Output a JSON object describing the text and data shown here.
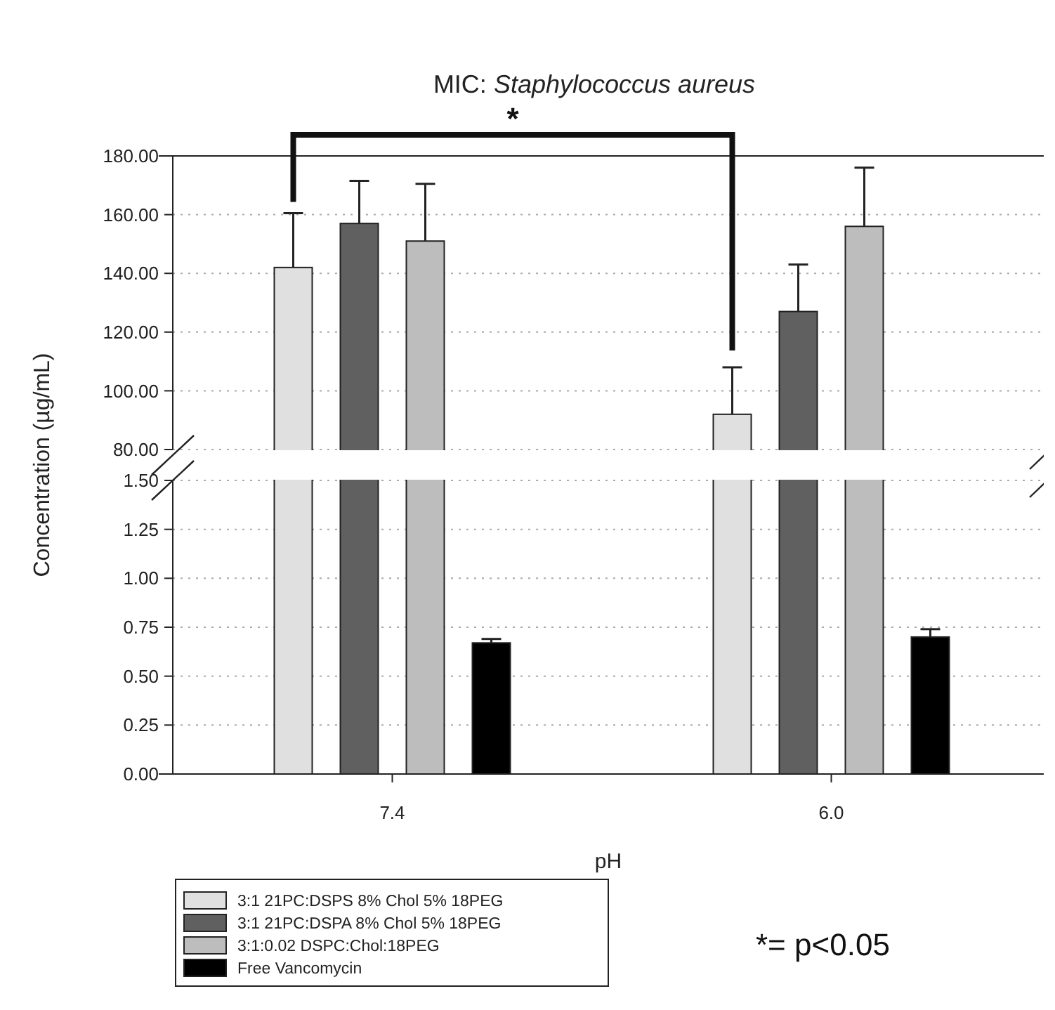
{
  "chart_data": [
    {
      "type": "bar",
      "title": "MIC: Staphylococcus aureus",
      "series": [
        {
          "color": "#e0e0e0",
          "values": [
            142,
            92
          ],
          "errors": [
            [
              142,
              160.5
            ],
            [
              92,
              108
            ]
          ]
        },
        {
          "color": "#606060",
          "values": [
            157,
            127
          ],
          "errors": [
            [
              157,
              171.5
            ],
            [
              127,
              143
            ]
          ]
        },
        {
          "color": "#bdbdbd",
          "values": [
            151,
            156
          ],
          "errors": [
            [
              151,
              170.5
            ],
            [
              156,
              176
            ]
          ]
        }
      ],
      "ylim": [
        80,
        180
      ],
      "yticks": [
        {
          "value": 80,
          "label": "80.00"
        },
        {
          "value": 100,
          "label": "100.00"
        },
        {
          "value": 120,
          "label": "120.00"
        },
        {
          "value": 140,
          "label": "140.00"
        },
        {
          "value": 160,
          "label": "160.00"
        },
        {
          "value": 180,
          "label": "180.00"
        }
      ],
      "grid": "y",
      "tick_labels": "y",
      "annotations": [
        "*"
      ]
    },
    {
      "type": "bar",
      "xlabel": "pH",
      "ylabel": "Concentration (µg/mL)",
      "categories": [
        "7.4",
        "6.0"
      ],
      "series": [
        {
          "name": "3:1 21PC:DSPS 8% Chol 5% 18PEG",
          "color": "#e0e0e0",
          "values": [
            null,
            null
          ]
        },
        {
          "name": "3:1 21PC:DSPA 8% Chol 5% 18PEG",
          "color": "#606060",
          "values": [
            null,
            null
          ]
        },
        {
          "name": "3:1:0.02 DSPC:Chol:18PEG",
          "color": "#bdbdbd",
          "values": [
            null,
            null
          ]
        },
        {
          "name": "Free Vancomycin",
          "color": "#000000",
          "values": [
            0.67,
            0.7
          ],
          "errors": [
            [
              0.67,
              0.69
            ],
            [
              0.7,
              0.74
            ]
          ]
        }
      ],
      "ylim": [
        0,
        1.5
      ],
      "yticks": [
        {
          "value": 0,
          "label": "0.00"
        },
        {
          "value": 0.25,
          "label": "0.25"
        },
        {
          "value": 0.5,
          "label": "0.50"
        },
        {
          "value": 0.75,
          "label": "0.75"
        },
        {
          "value": 1,
          "label": "1.00"
        },
        {
          "value": 1.25,
          "label": "1.25"
        },
        {
          "value": 1.5,
          "label": "1.50"
        }
      ],
      "grid": "y",
      "legend": "bottom left",
      "annotations": [
        "*= p<0.05"
      ]
    }
  ]
}
